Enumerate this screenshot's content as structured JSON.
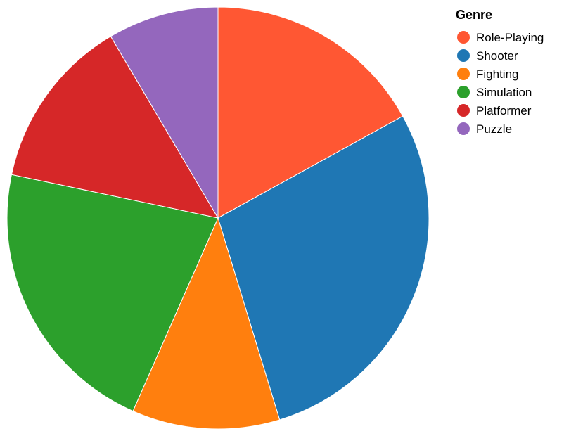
{
  "chart_data": {
    "type": "pie",
    "title": "",
    "legend": {
      "title": "Genre",
      "placement": "top-right"
    },
    "categories": [
      "Role-Playing",
      "Shooter",
      "Fighting",
      "Simulation",
      "Platformer",
      "Puzzle"
    ],
    "values": [
      18,
      30,
      12,
      23,
      14,
      9
    ],
    "colors": [
      "#ff5733",
      "#1f77b4",
      "#ff7f0e",
      "#2ca02c",
      "#d62728",
      "#9467bd"
    ],
    "start_angle_deg": 0,
    "direction": "clockwise"
  }
}
